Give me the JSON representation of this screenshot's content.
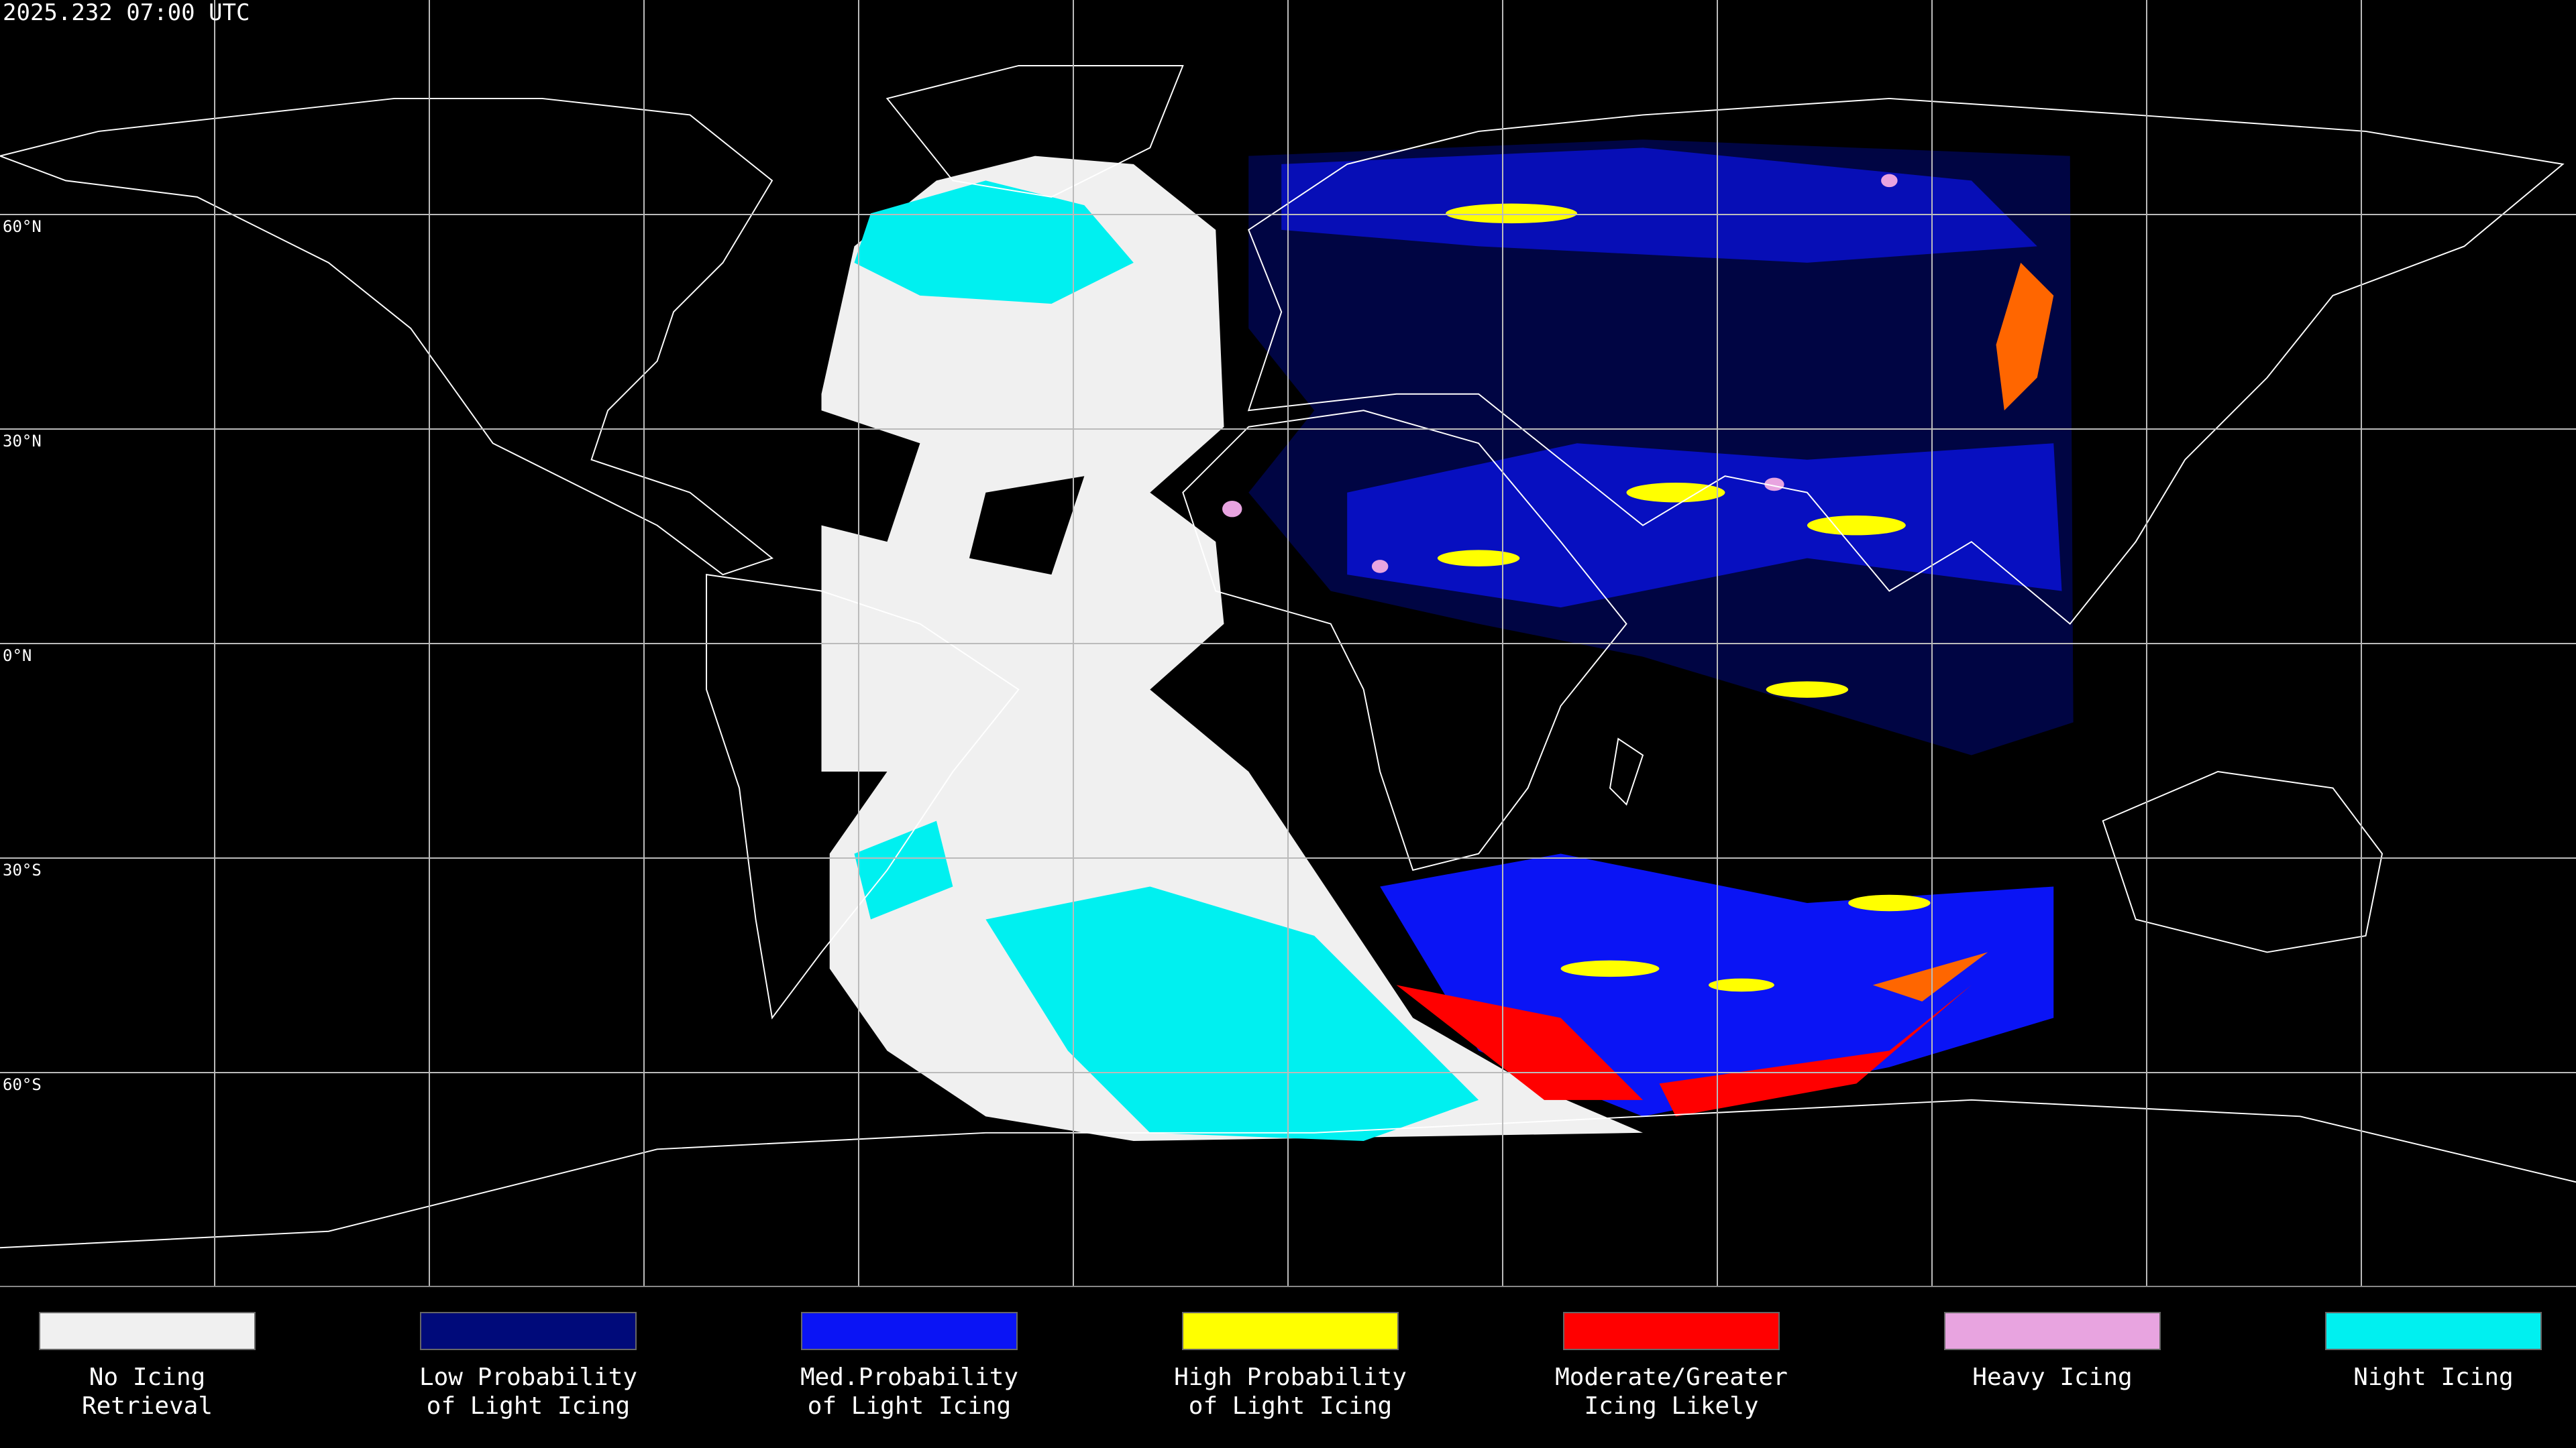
{
  "header": {
    "timestamp": "2025.232 07:00 UTC"
  },
  "latitude_labels": [
    "60°N",
    "30°N",
    "0°N",
    "30°S",
    "60°S"
  ],
  "legend": [
    {
      "lines": [
        "No Icing",
        "Retrieval"
      ],
      "color": "#f0f0f0"
    },
    {
      "lines": [
        "Low Probability",
        "of Light Icing"
      ],
      "color": "#000a7a"
    },
    {
      "lines": [
        "Med.Probability",
        "of Light Icing"
      ],
      "color": "#0a14f5"
    },
    {
      "lines": [
        "High Probability",
        "of Light Icing"
      ],
      "color": "#ffff00"
    },
    {
      "lines": [
        "Moderate/Greater",
        "Icing Likely"
      ],
      "color": "#ff0000"
    },
    {
      "lines": [
        "Heavy Icing"
      ],
      "color": "#e8a4e0"
    },
    {
      "lines": [
        "Night Icing"
      ],
      "color": "#00f0f0"
    }
  ]
}
